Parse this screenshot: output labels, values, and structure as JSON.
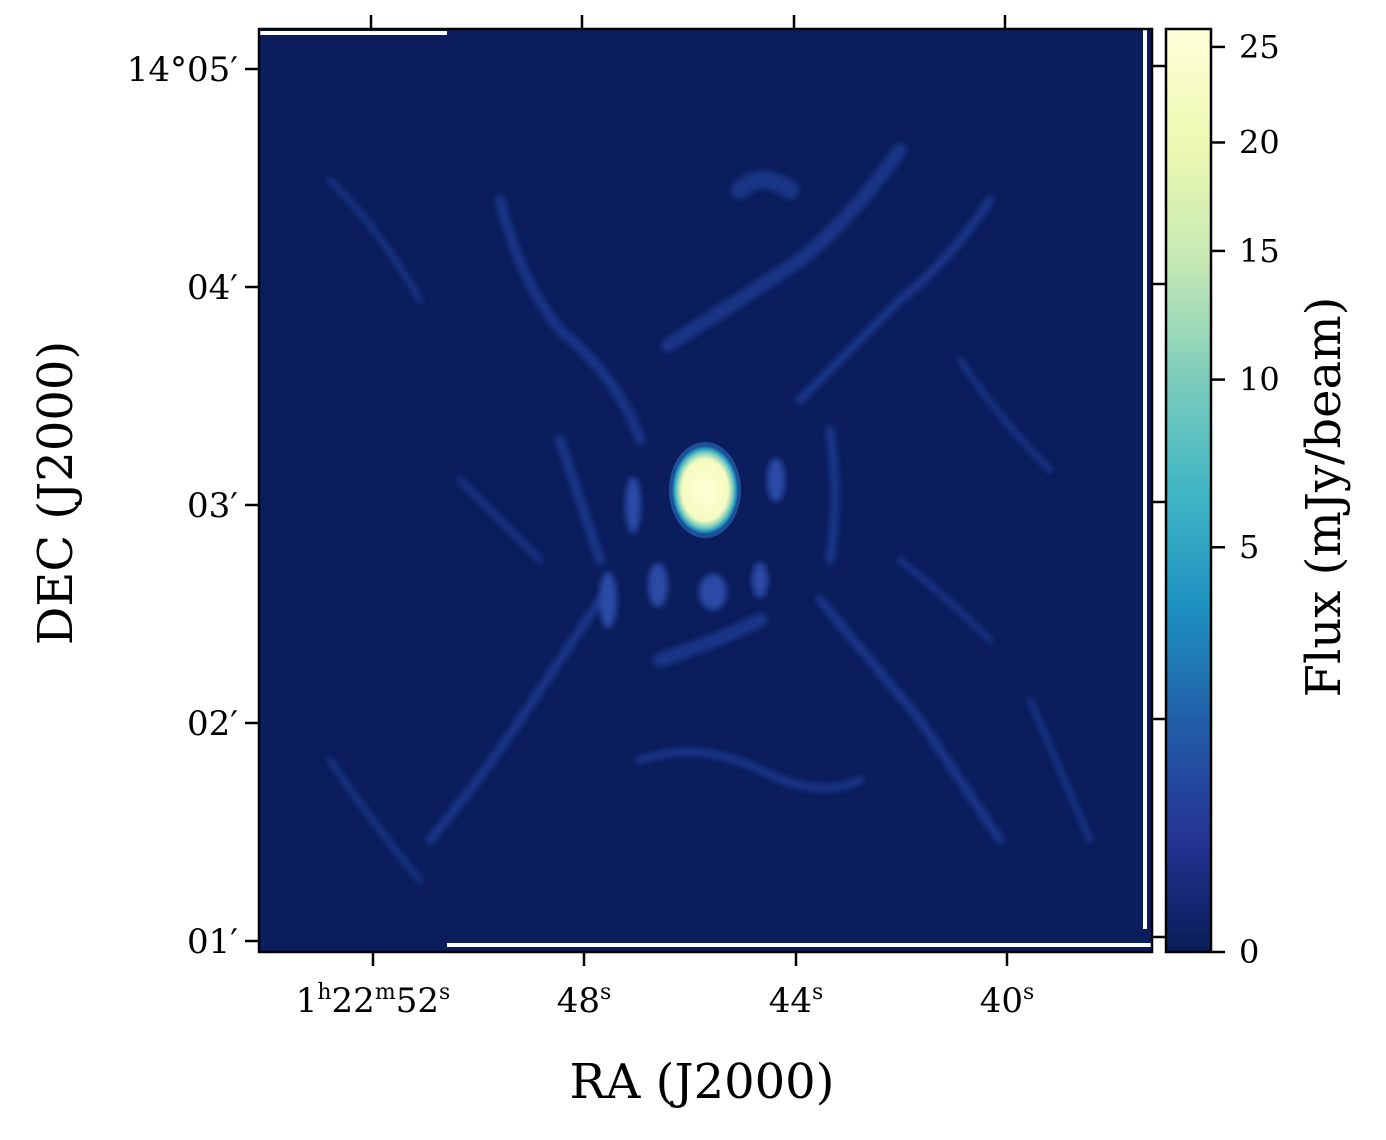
{
  "chart_data": {
    "type": "heatmap",
    "xlabel": "RA (J2000)",
    "ylabel": "DEC (J2000)",
    "x_ticks": [
      {
        "label": "1h22m52s",
        "base": "1",
        "h": "h",
        "min": "22",
        "m": "m",
        "sec": "52",
        "s": "s"
      },
      {
        "label": "48s",
        "base": "48",
        "s": "s"
      },
      {
        "label": "44s",
        "base": "44",
        "s": "s"
      },
      {
        "label": "40s",
        "base": "40",
        "s": "s"
      }
    ],
    "y_ticks": [
      "14°05′",
      "04′",
      "03′",
      "02′",
      "01′"
    ],
    "image": {
      "colormap": "YlGnBu",
      "background_color": "#0b1d5c",
      "sources": [
        {
          "name": "central source",
          "ra_offset_s": -2.2,
          "dec_offset_arcmin": 0.3,
          "peak_mJy_beam": 25.8
        }
      ]
    },
    "colorbar": {
      "label": "Flux (mJy/beam)",
      "scale": "nonlinear",
      "range": [
        0,
        26
      ],
      "ticks": [
        {
          "value": 0,
          "label": "0"
        },
        {
          "value": 5,
          "label": "5"
        },
        {
          "value": 10,
          "label": "10"
        },
        {
          "value": 15,
          "label": "15"
        },
        {
          "value": 20,
          "label": "20"
        },
        {
          "value": 25,
          "label": "25"
        }
      ],
      "colors": [
        "#081d58",
        "#253494",
        "#225ea8",
        "#1d91c0",
        "#41b6c4",
        "#7fcdbb",
        "#c7e9b4",
        "#edf8b1",
        "#ffffd9"
      ]
    }
  }
}
